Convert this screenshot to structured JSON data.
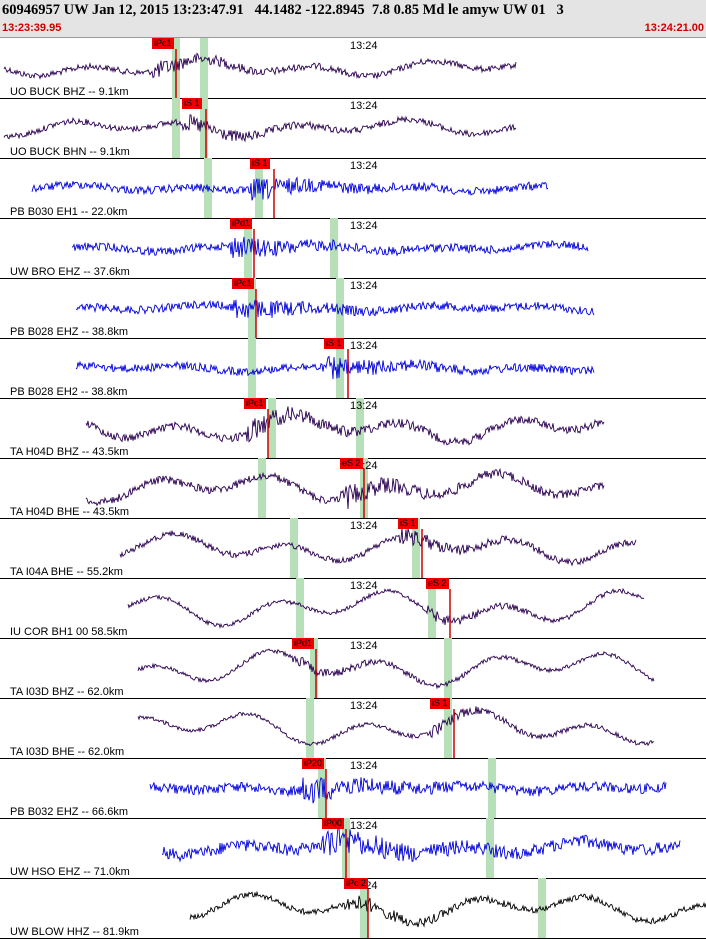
{
  "header": {
    "title": "60946957 UW Jan 12, 2015 13:23:47.91   44.1482 -122.8945  7.8 0.85 Md le amyw UW 01   3",
    "time_start": "13:23:39.95",
    "time_end": "13:24:21.00"
  },
  "minute_tick": "13:24",
  "colors": {
    "blue": "#0000dd",
    "purple": "#2a0050",
    "black": "#000000",
    "green": "#b8e0b8",
    "pick": "#ee0000"
  },
  "channels": [
    {
      "label": "UO BUCK BHZ -- 9.1km",
      "pick": "iPc1",
      "color": "purple"
    },
    {
      "label": "UO BUCK BHN -- 9.1km",
      "pick": "iS 1",
      "color": "purple"
    },
    {
      "label": "PB B030 EH1 -- 22.0km",
      "pick": "iS 1",
      "color": "blue"
    },
    {
      "label": "UW BRO EHZ -- 37.6km",
      "pick": "iPd1",
      "color": "blue"
    },
    {
      "label": "PB B028 EHZ -- 38.8km",
      "pick": "iPc1",
      "color": "blue"
    },
    {
      "label": "PB B028 EH2 -- 38.8km",
      "pick": "iS 1",
      "color": "blue"
    },
    {
      "label": "TA H04D BHZ -- 43.5km",
      "pick": "iPc1",
      "color": "purple"
    },
    {
      "label": "TA H04D BHE -- 43.5km",
      "pick": "eS 2",
      "color": "purple"
    },
    {
      "label": "TA I04A BHE -- 55.2km",
      "pick": "iS 1",
      "color": "purple"
    },
    {
      "label": "IU COR BH1 00 58.5km",
      "pick": "eS 2",
      "color": "purple"
    },
    {
      "label": "TA I03D BHZ -- 62.0km",
      "pick": "iPd1",
      "color": "purple"
    },
    {
      "label": "TA I03D BHE -- 62.0km",
      "pick": "iS 1",
      "color": "purple"
    },
    {
      "label": "PB B032 EHZ -- 66.6km",
      "pick": "iP20",
      "color": "blue"
    },
    {
      "label": "UW HSO EHZ -- 71.0km",
      "pick": "iP00",
      "color": "blue"
    },
    {
      "label": "UW BLOW HHZ -- 81.9km",
      "pick": "iPc 2",
      "color": "black"
    }
  ]
}
